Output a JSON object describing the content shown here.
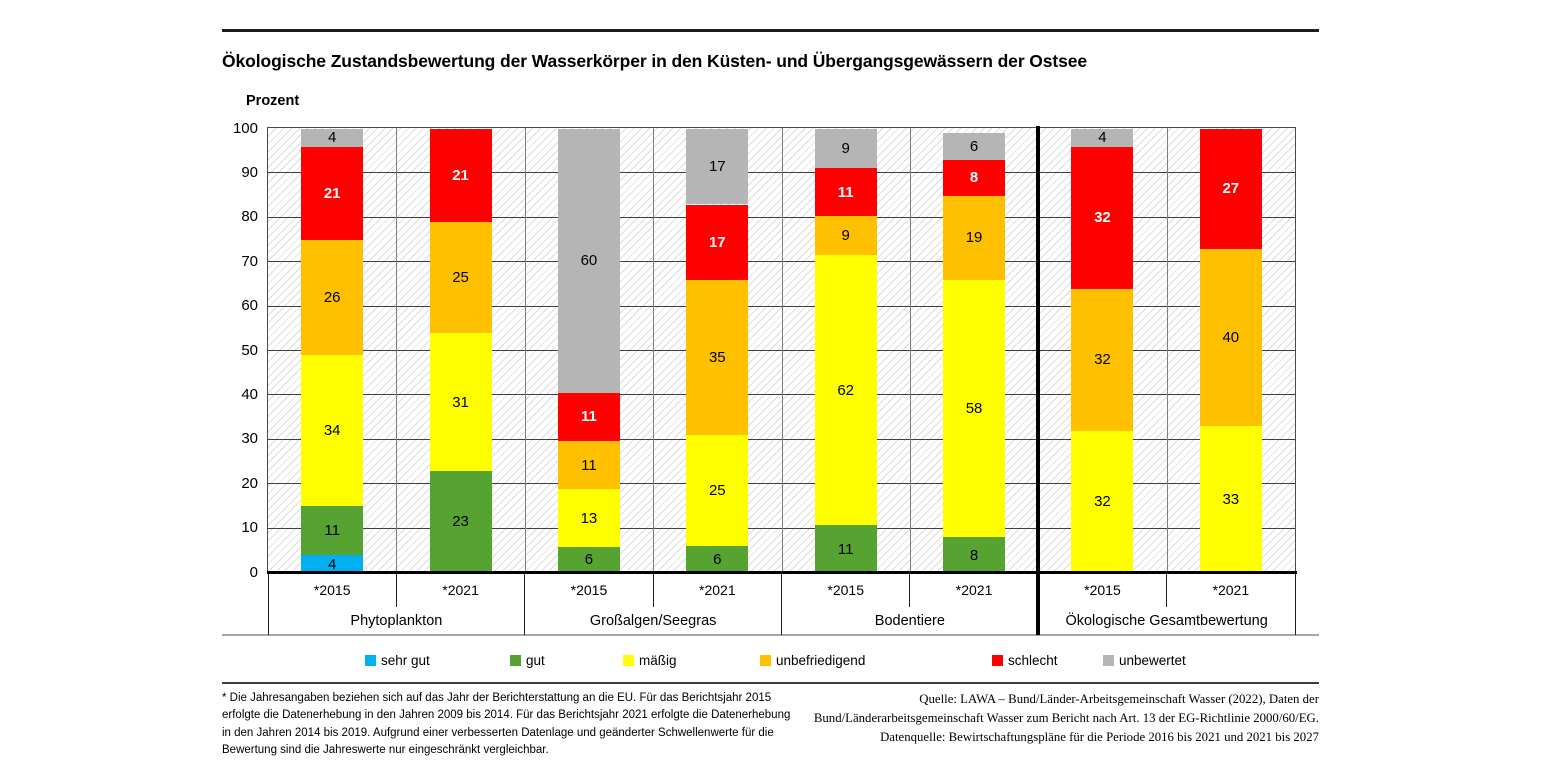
{
  "header": {
    "title": "Ökologische Zustandsbewertung der Wasserkörper in den Küsten- und Übergangsgewässern der Ostsee",
    "y_axis_title": "Prozent"
  },
  "chart_data": {
    "type": "bar",
    "stacked": true,
    "value_unit": "Prozent",
    "ylim": [
      0,
      100
    ],
    "y_tick_step": 10,
    "grid": true,
    "legend_position": "bottom",
    "groups": [
      {
        "label": "Phytoplankton",
        "slug": "phytoplankton"
      },
      {
        "label": "Großalgen/Seegras",
        "slug": "grossalgen-seegras"
      },
      {
        "label": "Bodentiere",
        "slug": "bodentiere"
      },
      {
        "label": "Ökologische Gesamtbewertung",
        "slug": "oekologische-gesamtbewertung"
      }
    ],
    "years": [
      "*2015",
      "*2021"
    ],
    "categories": [
      "Phytoplankton *2015",
      "Phytoplankton *2021",
      "Großalgen/Seegras *2015",
      "Großalgen/Seegras *2021",
      "Bodentiere *2015",
      "Bodentiere *2021",
      "Ökologische Gesamtbewertung *2015",
      "Ökologische Gesamtbewertung *2021"
    ],
    "series": [
      {
        "name": "sehr gut",
        "slug": "sehr-gut",
        "color": "#00B0F0",
        "label_color": "#000000",
        "label_bold": false,
        "values": [
          4,
          0,
          0,
          0,
          0,
          0,
          0,
          0
        ]
      },
      {
        "name": "gut",
        "slug": "gut",
        "color": "#56A332",
        "label_color": "#000000",
        "label_bold": false,
        "values": [
          11,
          23,
          6,
          6,
          11,
          8,
          0,
          0
        ]
      },
      {
        "name": "mäßig",
        "slug": "maessig",
        "color": "#FFFF00",
        "label_color": "#000000",
        "label_bold": false,
        "values": [
          34,
          31,
          13,
          25,
          62,
          58,
          32,
          33
        ]
      },
      {
        "name": "unbefriedigend",
        "slug": "unbefriedigend",
        "color": "#FFC000",
        "label_color": "#000000",
        "label_bold": false,
        "values": [
          26,
          25,
          11,
          35,
          9,
          19,
          32,
          40
        ]
      },
      {
        "name": "schlecht",
        "slug": "schlecht",
        "color": "#FF0000",
        "label_color": "#FFFFFF",
        "label_bold": true,
        "values": [
          21,
          21,
          11,
          17,
          11,
          8,
          32,
          27
        ]
      },
      {
        "name": "unbewertet",
        "slug": "unbewertet",
        "color": "#B5B5B5",
        "label_color": "#000000",
        "label_bold": false,
        "values": [
          4,
          0,
          60,
          17,
          9,
          6,
          4,
          0
        ]
      }
    ]
  },
  "footnotes": {
    "left": "* Die Jahresangaben beziehen sich auf das Jahr der Berichterstattung an die EU. Für das Berichtsjahr 2015\nerfolgte die Datenerhebung in den Jahren 2009 bis 2014. Für das Berichtsjahr 2021 erfolgte die Datenerhebung\nin den Jahren 2014 bis 2019. Aufgrund einer verbesserten Datenlage und geänderter Schwellenwerte für die\nBewertung sind die Jahreswerte nur eingeschränkt vergleichbar.",
    "right": "Quelle: LAWA – Bund/Länder-Arbeitsgemeinschaft Wasser (2022), Daten der\nBund/Länderarbeitsgemeinschaft Wasser zum Bericht nach Art. 13 der EG-Richtlinie 2000/60/EG.\nDatenquelle: Bewirtschaftungspläne für die Periode 2016 bis 2021 und 2021 bis 2027"
  }
}
